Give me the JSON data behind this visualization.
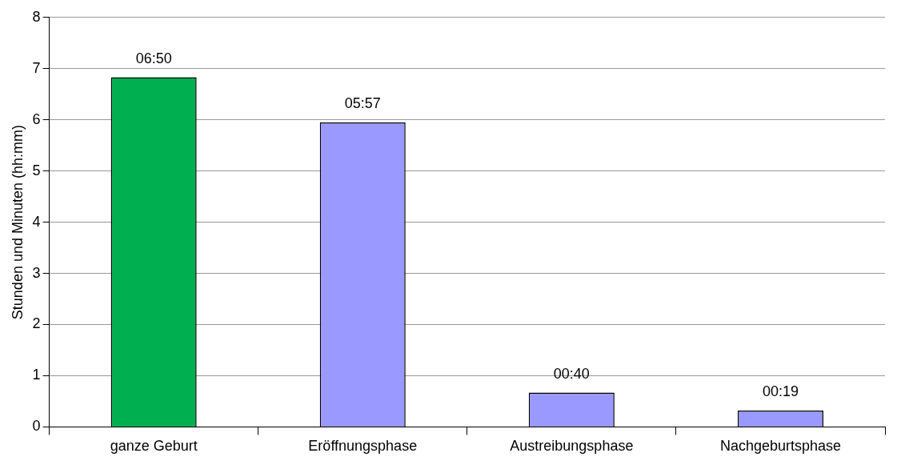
{
  "chart_data": {
    "type": "bar",
    "ylabel": "Stunden und Minuten (hh:mm)",
    "categories": [
      "ganze Geburt",
      "Eröffnungsphase",
      "Austreibungsphase",
      "Nachgeburtsphase"
    ],
    "values": [
      6.83,
      5.95,
      0.67,
      0.32
    ],
    "colors": [
      "#00b050",
      "#9999ff",
      "#9999ff",
      "#9999ff"
    ],
    "value_labels": [
      "06:50",
      "05:57",
      "00:40",
      "00:19"
    ],
    "ylim": [
      0,
      8
    ],
    "yticks": [
      0,
      1,
      2,
      3,
      4,
      5,
      6,
      7,
      8
    ],
    "grid": "y",
    "legend": false
  }
}
